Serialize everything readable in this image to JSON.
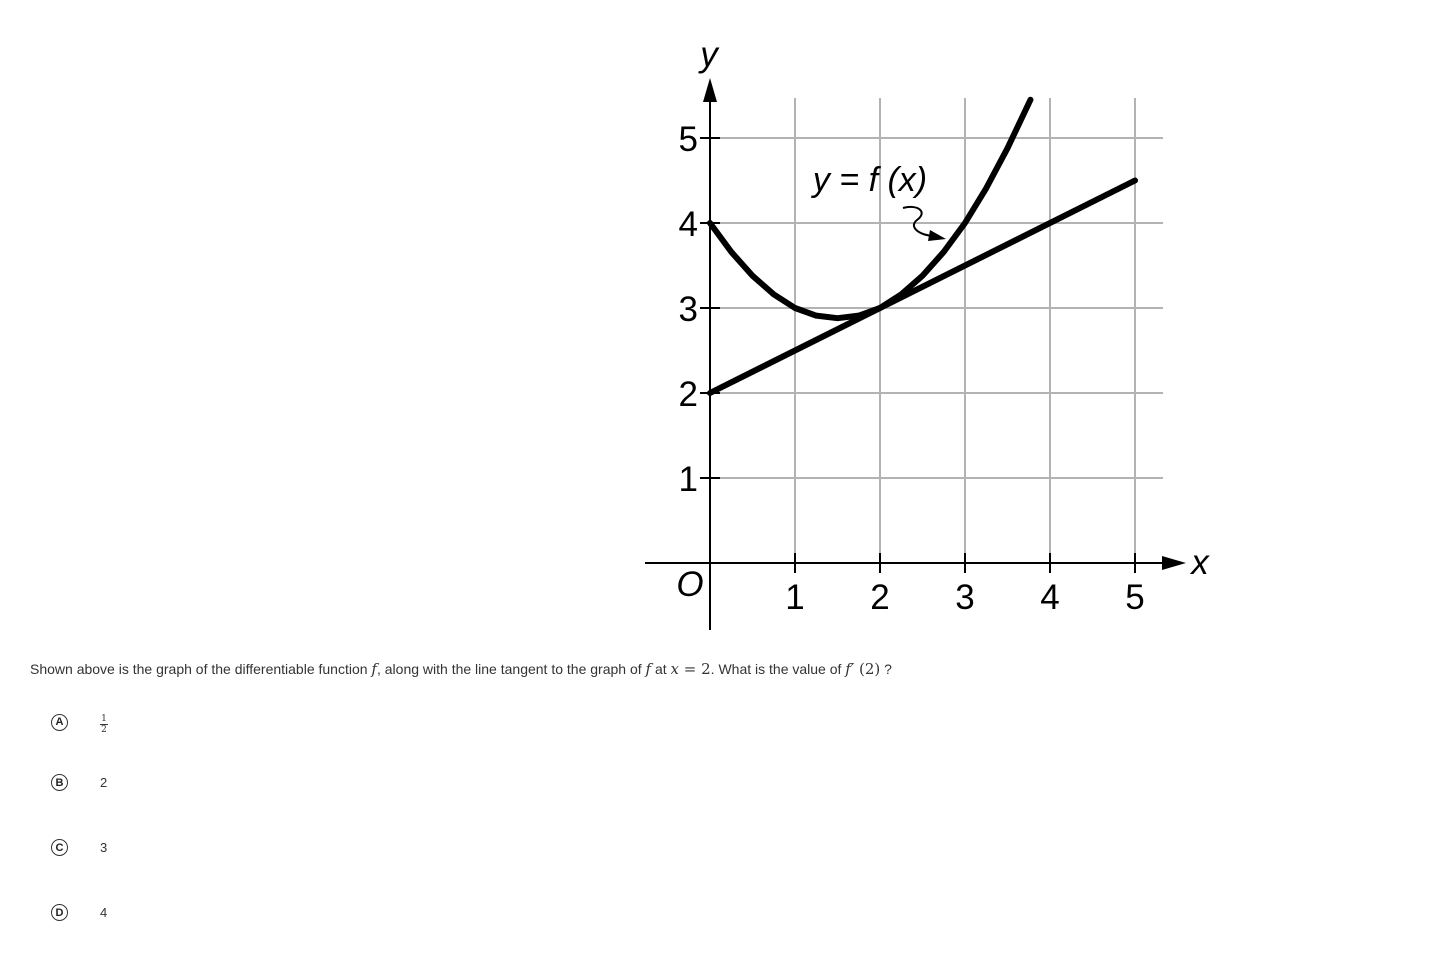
{
  "question": {
    "t1": "Shown above is the graph of the differentiable function ",
    "m1": "f",
    "t2": ", along with the line tangent to the graph of ",
    "m2": "f",
    "t3": " at ",
    "m3": "x",
    "m3b": " = 2",
    "t4": ". What is the value of ",
    "m4": "f′",
    "m4b": " (2)",
    "t5": " ?"
  },
  "choices": [
    {
      "letter": "A",
      "numerator": "1",
      "denominator": "2"
    },
    {
      "letter": "B",
      "value": "2"
    },
    {
      "letter": "C",
      "value": "3"
    },
    {
      "letter": "D",
      "value": "4"
    }
  ],
  "chart_data": {
    "type": "line",
    "xlabel": "x",
    "ylabel": "y",
    "origin_label": "O",
    "x_ticks": [
      "1",
      "2",
      "3",
      "4",
      "5"
    ],
    "y_ticks": [
      "1",
      "2",
      "3",
      "4",
      "5"
    ],
    "xlim": [
      0,
      5.33
    ],
    "ylim": [
      0,
      5.47
    ],
    "grid": true,
    "curve_label": "y = f (x)",
    "series": [
      {
        "id": "f",
        "x": [
          0,
          0.25,
          0.5,
          0.75,
          1,
          1.25,
          1.5,
          1.75,
          2,
          2.25,
          2.5,
          2.75,
          3,
          3.25,
          3.5,
          3.77
        ],
        "y": [
          4,
          3.66,
          3.38,
          3.16,
          3,
          2.91,
          2.88,
          2.91,
          3,
          3.16,
          3.38,
          3.66,
          4,
          4.41,
          4.88,
          5.45
        ]
      },
      {
        "id": "tangent",
        "x": [
          0,
          5
        ],
        "y": [
          2,
          4.5
        ]
      }
    ],
    "colors": {
      "curve": "#000000",
      "grid": "#b3b3b3"
    }
  }
}
